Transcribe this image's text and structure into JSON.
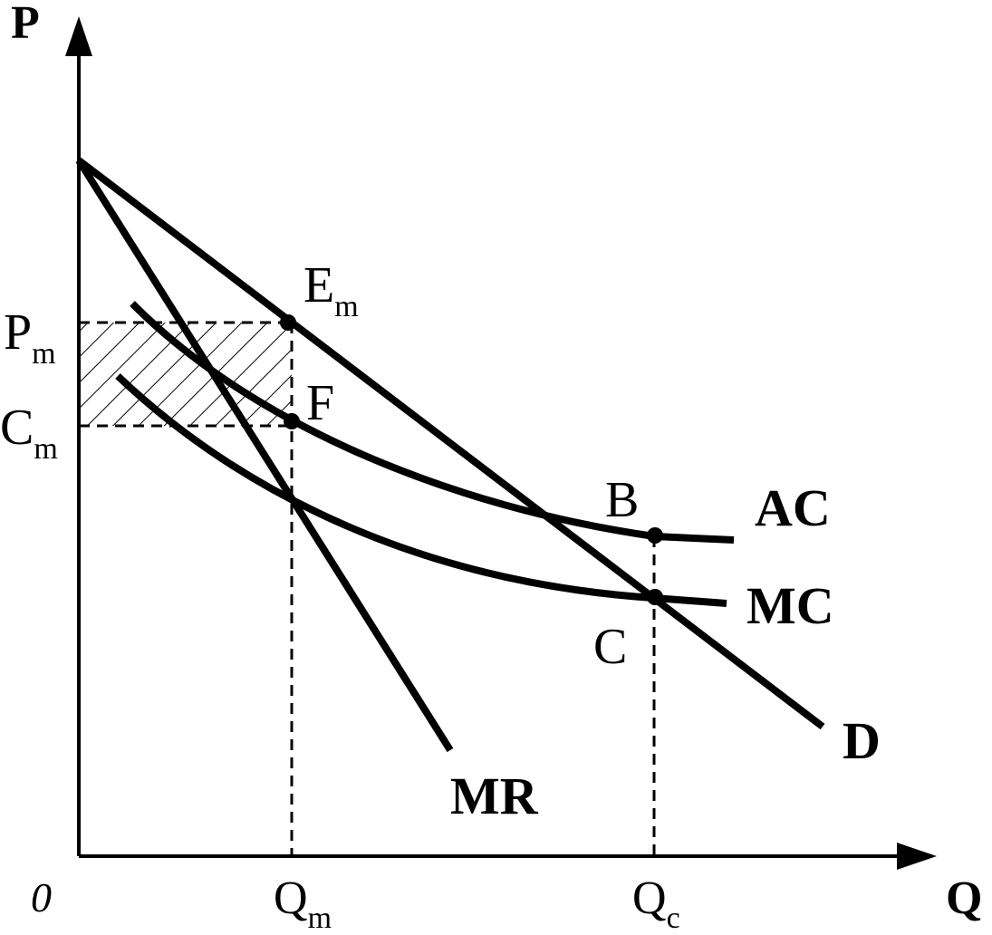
{
  "axes": {
    "y_label": "P",
    "x_label": "Q",
    "origin_label": "0"
  },
  "y_ticks": [
    {
      "main": "P",
      "sub": "m"
    },
    {
      "main": "C",
      "sub": "m"
    }
  ],
  "x_ticks": [
    {
      "main": "Q",
      "sub": "m"
    },
    {
      "main": "Q",
      "sub": "c"
    }
  ],
  "points": [
    {
      "main": "E",
      "sub": "m"
    },
    {
      "main": "F",
      "sub": ""
    },
    {
      "main": "B",
      "sub": ""
    },
    {
      "main": "C",
      "sub": ""
    }
  ],
  "curves": {
    "ac": "AC",
    "mc": "MC",
    "d": "D",
    "mr": "MR"
  },
  "colors": {
    "line": "#000000",
    "background": "#ffffff"
  }
}
